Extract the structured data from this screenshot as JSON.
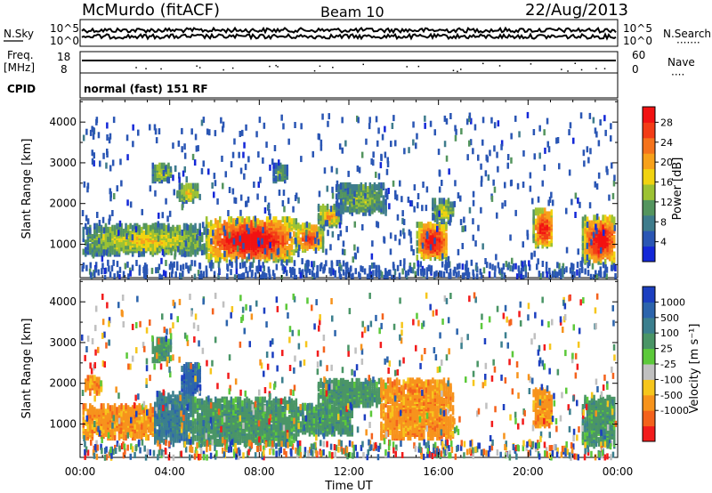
{
  "header": {
    "station": "McMurdo (fitACF)",
    "beam": "Beam 10",
    "date": "22/Aug/2013"
  },
  "noise_panel": {
    "left_label": "N.Sky",
    "right_label": "N.Search",
    "right_legend": "·······",
    "ticks": [
      "10^5",
      "10^0"
    ]
  },
  "freq_panel": {
    "left_label_1": "Freq.",
    "left_label_2": "[MHz]",
    "left_ticks": [
      "18",
      "8"
    ],
    "right_label": "Nave",
    "right_legend": "····",
    "right_ticks": [
      "60",
      "0"
    ]
  },
  "cpid_panel": {
    "label": "CPID",
    "value": "normal (fast) 151 RF"
  },
  "time_axis": {
    "label": "Time UT",
    "ticks": [
      "00:00",
      "04:00",
      "08:00",
      "12:00",
      "16:00",
      "20:00",
      "00:00"
    ]
  },
  "chart_data": [
    {
      "type": "heatmap",
      "name": "power",
      "ylabel": "Slant Range [km]",
      "yticks": [
        1000,
        2000,
        3000,
        4000
      ],
      "ylim": [
        180,
        4550
      ],
      "xlim_hours": [
        0,
        24
      ],
      "colorbar": {
        "label": "Power [dB]",
        "tick_labels": [
          "4",
          "8",
          "12",
          "16",
          "20",
          "24",
          "28"
        ],
        "colors": [
          "#1428d8",
          "#2a56b4",
          "#3e7c8c",
          "#54955e",
          "#9cc233",
          "#f1d310",
          "#f7a11a",
          "#f5731c",
          "#f33c16",
          "#f21212"
        ]
      },
      "echo_regions": [
        {
          "t0": 0.1,
          "t1": 5.6,
          "r0": 800,
          "r1": 1500,
          "level": 0.45
        },
        {
          "t0": 3.2,
          "t1": 4.1,
          "r0": 2600,
          "r1": 3000,
          "level": 0.4
        },
        {
          "t0": 4.3,
          "t1": 5.3,
          "r0": 2100,
          "r1": 2500,
          "level": 0.45
        },
        {
          "t0": 5.6,
          "t1": 9.6,
          "r0": 650,
          "r1": 1650,
          "level": 0.9
        },
        {
          "t0": 8.6,
          "t1": 9.2,
          "r0": 2600,
          "r1": 3000,
          "level": 0.3
        },
        {
          "t0": 9.6,
          "t1": 10.8,
          "r0": 900,
          "r1": 1500,
          "level": 0.75
        },
        {
          "t0": 10.6,
          "t1": 11.6,
          "r0": 1500,
          "r1": 2000,
          "level": 0.55
        },
        {
          "t0": 11.4,
          "t1": 13.6,
          "r0": 1800,
          "r1": 2500,
          "level": 0.35
        },
        {
          "t0": 15.0,
          "t1": 16.4,
          "r0": 700,
          "r1": 1550,
          "level": 0.85
        },
        {
          "t0": 15.7,
          "t1": 16.7,
          "r0": 1600,
          "r1": 2100,
          "level": 0.4
        },
        {
          "t0": 20.2,
          "t1": 21.1,
          "r0": 1000,
          "r1": 1900,
          "level": 0.8
        },
        {
          "t0": 22.4,
          "t1": 24.0,
          "r0": 600,
          "r1": 1700,
          "level": 0.85
        }
      ]
    },
    {
      "type": "heatmap",
      "name": "velocity",
      "ylabel": "Slant Range [km]",
      "yticks": [
        1000,
        2000,
        3000,
        4000
      ],
      "ylim": [
        180,
        4550
      ],
      "xlim_hours": [
        0,
        24
      ],
      "colorbar": {
        "label": "Velocity [m s⁻¹]",
        "tick_labels": [
          "1000",
          "500",
          "100",
          "25",
          "-25",
          "-100",
          "-500",
          "-1000"
        ],
        "colors": [
          "#1c3fc0",
          "#2c64ac",
          "#3b7f8e",
          "#4a9566",
          "#5cc93a",
          "#c0c0c0",
          "#f6c61c",
          "#f7931c",
          "#f4621c",
          "#f21c1c"
        ]
      },
      "echo_regions": [
        {
          "t0": 0.1,
          "t1": 3.3,
          "r0": 700,
          "r1": 1500,
          "vel": -150
        },
        {
          "t0": 0.2,
          "t1": 0.9,
          "r0": 1800,
          "r1": 2200,
          "vel": -150
        },
        {
          "t0": 3.3,
          "t1": 5.0,
          "r0": 600,
          "r1": 1800,
          "vel": 400
        },
        {
          "t0": 4.5,
          "t1": 5.3,
          "r0": 1800,
          "r1": 2500,
          "vel": 700
        },
        {
          "t0": 3.2,
          "t1": 4.1,
          "r0": 2600,
          "r1": 3100,
          "vel": 300
        },
        {
          "t0": 5.0,
          "t1": 9.6,
          "r0": 550,
          "r1": 1650,
          "vel": 250
        },
        {
          "t0": 9.6,
          "t1": 12.1,
          "r0": 800,
          "r1": 1500,
          "vel": 250
        },
        {
          "t0": 10.6,
          "t1": 13.4,
          "r0": 1500,
          "r1": 2100,
          "vel": 150
        },
        {
          "t0": 13.4,
          "t1": 16.6,
          "r0": 700,
          "r1": 2100,
          "vel": -150
        },
        {
          "t0": 20.2,
          "t1": 21.1,
          "r0": 1000,
          "r1": 1900,
          "vel": -150
        },
        {
          "t0": 22.4,
          "t1": 24.0,
          "r0": 500,
          "r1": 1700,
          "vel": 150
        }
      ]
    }
  ]
}
